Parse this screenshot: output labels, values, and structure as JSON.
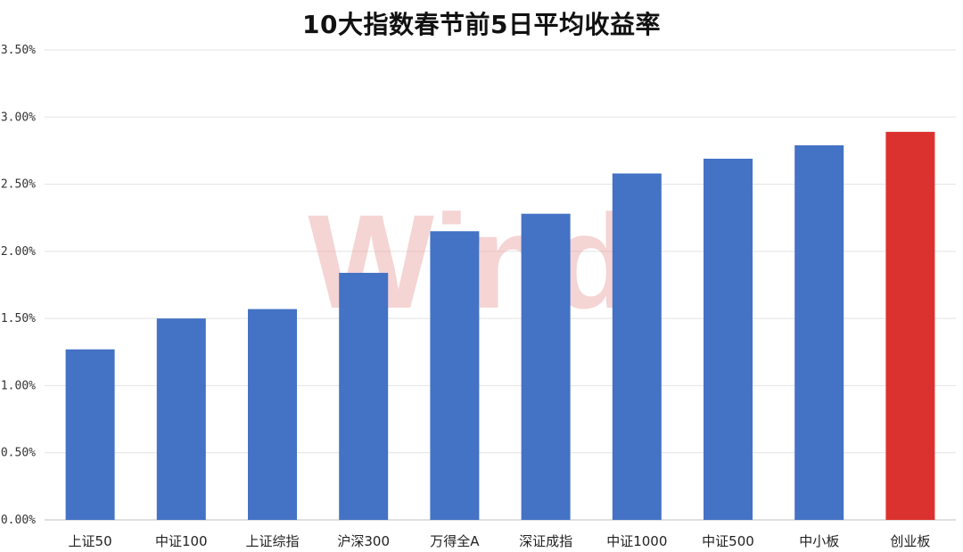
{
  "chart_data": {
    "type": "bar",
    "title": "10大指数春节前5日平均收益率",
    "categories": [
      "上证50",
      "中证100",
      "上证综指",
      "沪深300",
      "万得全A",
      "深证成指",
      "中证1000",
      "中证500",
      "中小板",
      "创业板"
    ],
    "values": [
      1.27,
      1.5,
      1.57,
      1.84,
      2.15,
      2.28,
      2.58,
      2.69,
      2.79,
      2.89
    ],
    "ylim": [
      0,
      3.5
    ],
    "yticks": [
      "0.00%",
      "0.50%",
      "1.00%",
      "1.50%",
      "2.00%",
      "2.50%",
      "3.00%",
      "3.50%"
    ],
    "ytick_values": [
      0,
      0.5,
      1.0,
      1.5,
      2.0,
      2.5,
      3.0,
      3.5
    ],
    "xlabel": "",
    "ylabel": "",
    "grid": true,
    "legend": "none",
    "colors": {
      "default_bar": "#4472c4",
      "highlight_bar": "#dc322f"
    },
    "highlight_index": 9
  },
  "watermark": "Wind"
}
